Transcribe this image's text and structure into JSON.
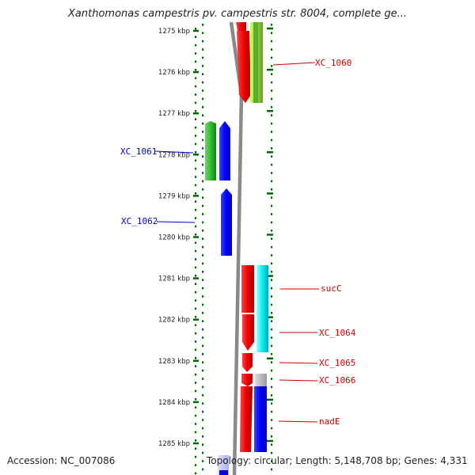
{
  "title": "Xanthomonas campestris pv. campestris str. 8004, complete ge...",
  "ticks": [
    "1275 kbp",
    "1276 kbp",
    "1277 kbp",
    "1278 kbp",
    "1279 kbp",
    "1280 kbp",
    "1281 kbp",
    "1282 kbp",
    "1283 kbp",
    "1284 kbp",
    "1285 kbp"
  ],
  "labels": [
    {
      "text": "XC_1060",
      "strand": "forward"
    },
    {
      "text": "XC_1061",
      "strand": "reverse"
    },
    {
      "text": "XC_1062",
      "strand": "reverse"
    },
    {
      "text": "sucC",
      "strand": "forward"
    },
    {
      "text": "XC_1064",
      "strand": "forward"
    },
    {
      "text": "XC_1065",
      "strand": "forward"
    },
    {
      "text": "XC_1066",
      "strand": "forward"
    },
    {
      "text": "nadE",
      "strand": "forward"
    }
  ],
  "colors": {
    "forward_label": "#cc0000",
    "reverse_label": "#0000cc",
    "tick": "#006600",
    "backbone": "#8a8a8a",
    "red": "#ff0000",
    "blue": "#0000ff",
    "green": "#33bb33",
    "lightgreen": "#99dd33",
    "cyan": "#00eeee",
    "grey": "#bbbbbb"
  },
  "footer": {
    "accession": "Accession: NC_007086",
    "topology": "Topology: circular; Length: 5,148,708 bp; Genes: 4,331"
  }
}
